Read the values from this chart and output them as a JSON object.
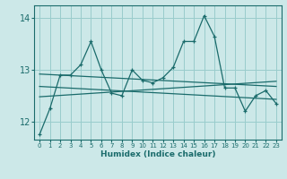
{
  "xlabel": "Humidex (Indice chaleur)",
  "ylabel": "",
  "bg_color": "#cce8e8",
  "grid_color": "#99cccc",
  "line_color": "#1a6b6b",
  "xlim": [
    -0.5,
    23.5
  ],
  "ylim": [
    11.65,
    14.25
  ],
  "yticks": [
    12,
    13,
    14
  ],
  "xticks": [
    0,
    1,
    2,
    3,
    4,
    5,
    6,
    7,
    8,
    9,
    10,
    11,
    12,
    13,
    14,
    15,
    16,
    17,
    18,
    19,
    20,
    21,
    22,
    23
  ],
  "main_x": [
    0,
    1,
    2,
    3,
    4,
    5,
    6,
    7,
    8,
    9,
    10,
    11,
    12,
    13,
    14,
    15,
    16,
    17,
    18,
    19,
    20,
    21,
    22,
    23
  ],
  "main_y": [
    11.75,
    12.25,
    12.9,
    12.9,
    13.1,
    13.55,
    13.0,
    12.55,
    12.5,
    13.0,
    12.8,
    12.75,
    12.85,
    13.05,
    13.55,
    13.55,
    14.05,
    13.65,
    12.65,
    12.65,
    12.2,
    12.5,
    12.6,
    12.35
  ],
  "trend1_x": [
    0,
    23
  ],
  "trend1_y": [
    12.92,
    12.68
  ],
  "trend2_x": [
    0,
    23
  ],
  "trend2_y": [
    12.68,
    12.43
  ],
  "trend3_x": [
    0,
    23
  ],
  "trend3_y": [
    12.48,
    12.78
  ]
}
